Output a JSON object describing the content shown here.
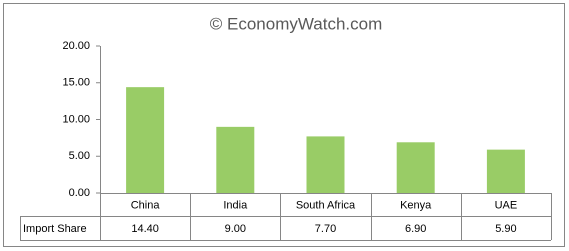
{
  "chart_data": {
    "type": "bar",
    "title": "© EconomyWatch.com",
    "categories": [
      "China",
      "India",
      "South Africa",
      "Kenya",
      "UAE"
    ],
    "series": [
      {
        "name": "Import Share",
        "color": "#99cc66",
        "values": [
          14.4,
          9.0,
          7.7,
          6.9,
          5.9
        ],
        "value_labels": [
          "14.40",
          "9.00",
          "7.70",
          "6.90",
          "5.90"
        ]
      }
    ],
    "ylim": [
      0,
      20
    ],
    "yticks": [
      {
        "value": 0,
        "label": "0.00"
      },
      {
        "value": 5,
        "label": "5.00"
      },
      {
        "value": 10,
        "label": "10.00"
      },
      {
        "value": 15,
        "label": "15.00"
      },
      {
        "value": 20,
        "label": "20.00"
      }
    ],
    "grid": false,
    "data_table": true
  }
}
